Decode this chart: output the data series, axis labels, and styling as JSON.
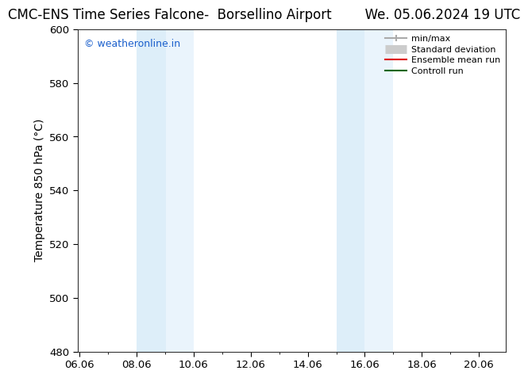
{
  "title": "CMC-ENS Time Series Falcone-  Borsellino Airport        We. 05.06.2024 19 UTC",
  "title_left": "CMC-ENS Time Series Falcone-  Borsellino Airport",
  "title_right": "We. 05.06.2024 19 UTC",
  "ylabel": "Temperature 850 hPa (°C)",
  "xlim": [
    6.0,
    21.0
  ],
  "ylim": [
    480,
    600
  ],
  "yticks": [
    480,
    500,
    520,
    540,
    560,
    580,
    600
  ],
  "xticks": [
    6.06,
    8.06,
    10.06,
    12.06,
    14.06,
    16.06,
    18.06,
    20.06
  ],
  "xticklabels": [
    "06.06",
    "08.06",
    "10.06",
    "12.06",
    "14.06",
    "16.06",
    "18.06",
    "20.06"
  ],
  "watermark": "© weatheronline.in",
  "shaded_bands": [
    {
      "x_start": 8.06,
      "x_end": 9.1,
      "color": "#ddeef9"
    },
    {
      "x_start": 9.1,
      "x_end": 10.06,
      "color": "#eaf4fc"
    },
    {
      "x_start": 15.06,
      "x_end": 16.06,
      "color": "#ddeef9"
    },
    {
      "x_start": 16.06,
      "x_end": 17.06,
      "color": "#eaf4fc"
    }
  ],
  "legend_items": [
    {
      "label": "min/max",
      "color": "#aaaaaa",
      "linestyle": "-",
      "linewidth": 1.5
    },
    {
      "label": "Standard deviation",
      "color": "#cccccc",
      "linestyle": "-",
      "linewidth": 8
    },
    {
      "label": "Ensemble mean run",
      "color": "#dd0000",
      "linestyle": "-",
      "linewidth": 1.5
    },
    {
      "label": "Controll run",
      "color": "#006600",
      "linestyle": "-",
      "linewidth": 1.5
    }
  ],
  "bg_color": "#ffffff",
  "plot_bg_color": "#ffffff",
  "title_fontsize": 12,
  "axis_fontsize": 10,
  "tick_fontsize": 9.5
}
